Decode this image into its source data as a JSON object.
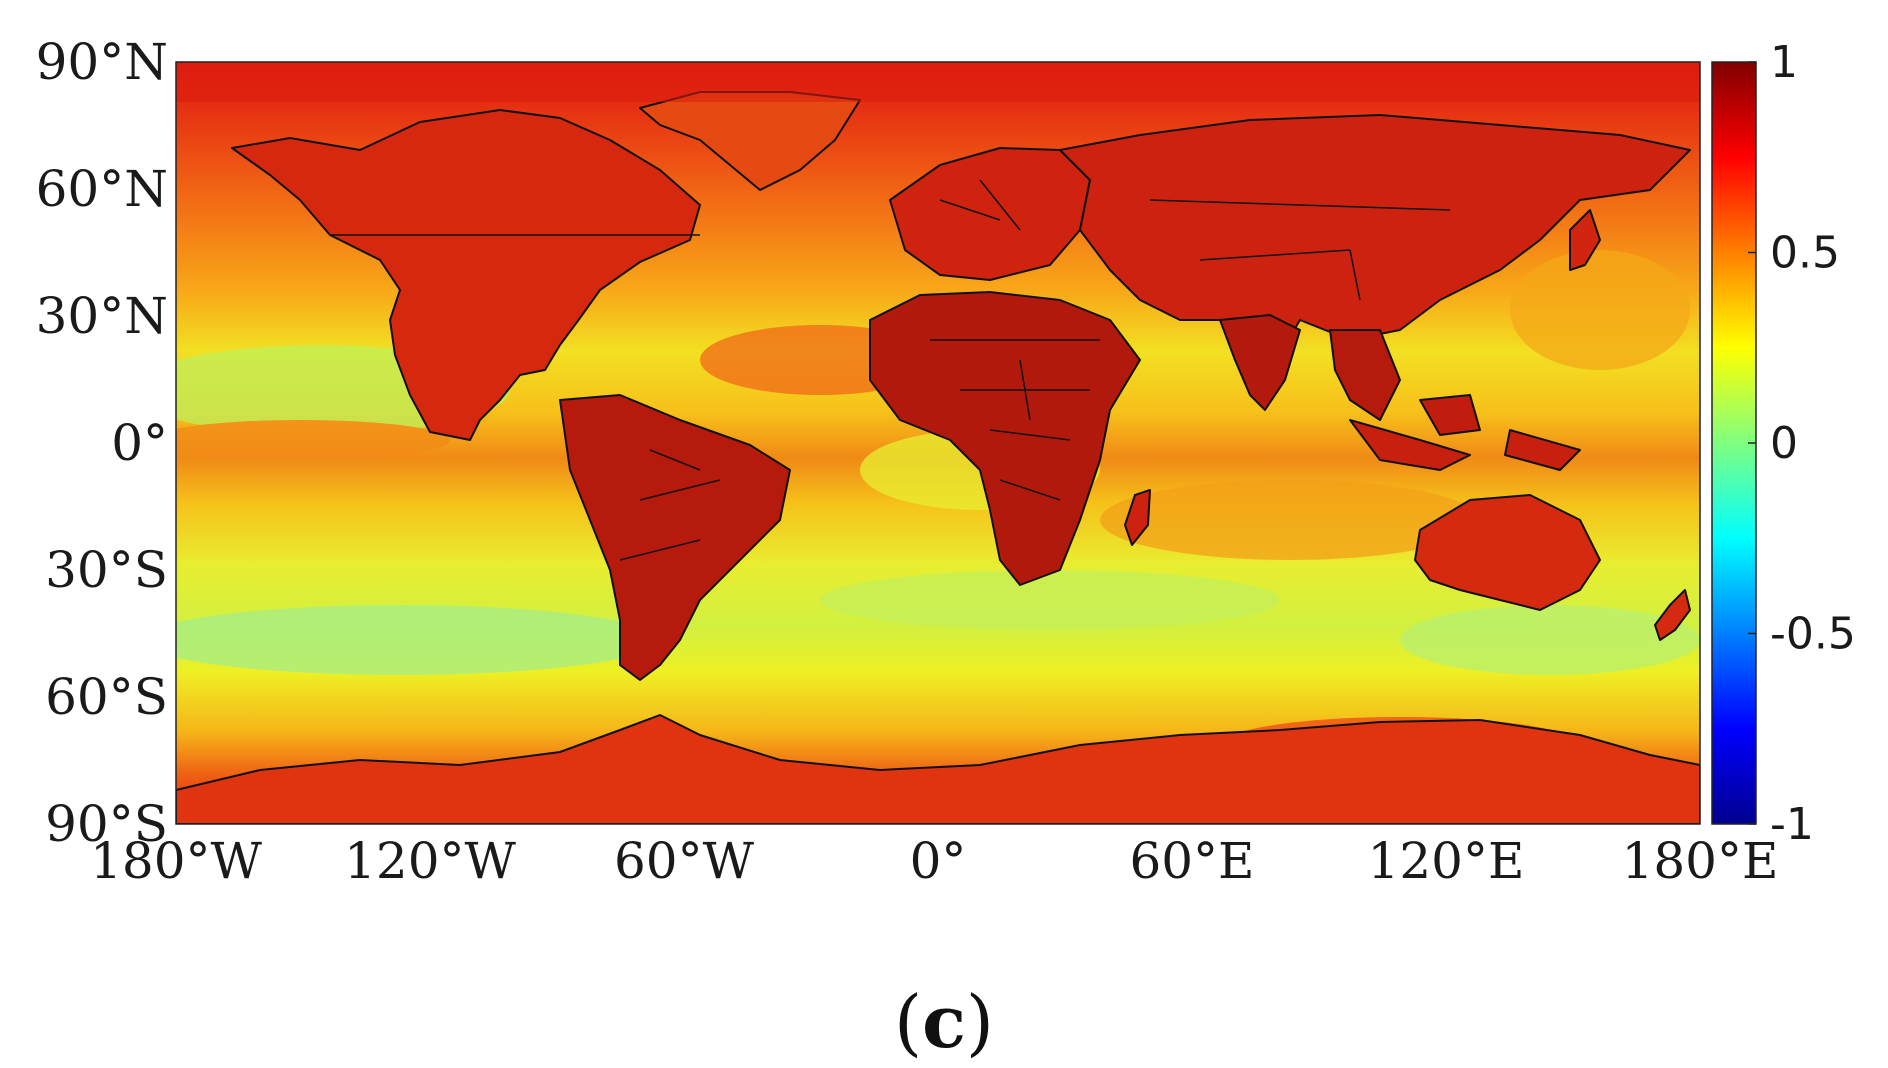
{
  "figure": {
    "panel_label": {
      "open": "(",
      "letter": "c",
      "close": ")"
    }
  },
  "map": {
    "projection": "equirectangular",
    "lon_range": [
      -180,
      180
    ],
    "lat_range": [
      -90,
      90
    ],
    "x_ticks": [
      {
        "value": -180,
        "label": "180°W"
      },
      {
        "value": -120,
        "label": "120°W"
      },
      {
        "value": -60,
        "label": "60°W"
      },
      {
        "value": 0,
        "label": "0°"
      },
      {
        "value": 60,
        "label": "60°E"
      },
      {
        "value": 120,
        "label": "120°E"
      },
      {
        "value": 180,
        "label": "180°E"
      }
    ],
    "y_ticks": [
      {
        "value": 90,
        "label": "90°N"
      },
      {
        "value": 60,
        "label": "60°N"
      },
      {
        "value": 30,
        "label": "30°N"
      },
      {
        "value": 0,
        "label": "0°"
      },
      {
        "value": -30,
        "label": "30°S"
      },
      {
        "value": -60,
        "label": "60°S"
      },
      {
        "value": -90,
        "label": "90°S"
      }
    ],
    "coastline_color": "#111111"
  },
  "colorbar": {
    "colormap": "jet",
    "range": [
      -1,
      1
    ],
    "ticks": [
      {
        "value": 1,
        "label": "1"
      },
      {
        "value": 0.5,
        "label": "0.5"
      },
      {
        "value": 0,
        "label": "0"
      },
      {
        "value": -0.5,
        "label": "-0.5"
      },
      {
        "value": -1,
        "label": "-1"
      }
    ]
  },
  "field_palette": {
    "land_high": "#b31a0e",
    "land": "#d92a10",
    "ocean_high": "#f06a10",
    "ocean_mid": "#f7b515",
    "ocean_low": "#f0f020",
    "ocean_lowest": "#c8f04a",
    "minimum": "#8ee6b0"
  }
}
